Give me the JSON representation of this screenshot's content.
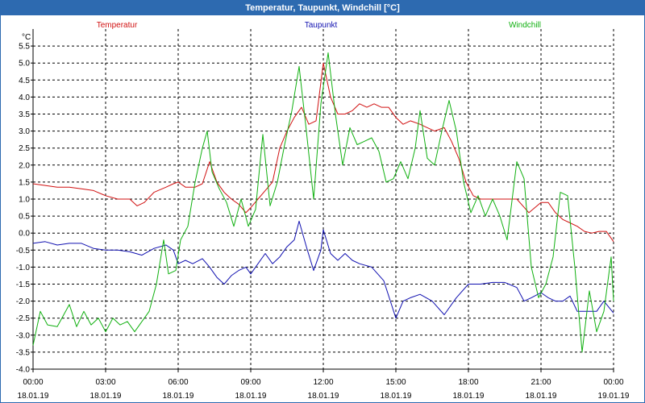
{
  "window": {
    "title": "Temperatur, Taupunkt, Windchill [°C]"
  },
  "chart_data": {
    "type": "line",
    "title": "Temperatur, Taupunkt, Windchill [°C]",
    "ylabel": "°C",
    "xlabel": "",
    "ylim": [
      -4.0,
      6.0
    ],
    "y_ticks": [
      "-4.0",
      "-3.5",
      "-3.0",
      "-2.5",
      "-2.0",
      "-1.5",
      "-1.0",
      "-0.5",
      "0.0",
      "0.5",
      "1.0",
      "1.5",
      "2.0",
      "2.5",
      "3.0",
      "3.5",
      "4.0",
      "4.5",
      "5.0",
      "5.5"
    ],
    "x_range_hours": [
      0,
      24
    ],
    "x_ticks": [
      {
        "time": "00:00",
        "date": "18.01.19"
      },
      {
        "time": "03:00",
        "date": "18.01.19"
      },
      {
        "time": "06:00",
        "date": "18.01.19"
      },
      {
        "time": "09:00",
        "date": "18.01.19"
      },
      {
        "time": "12:00",
        "date": "18.01.19"
      },
      {
        "time": "15:00",
        "date": "18.01.19"
      },
      {
        "time": "18:00",
        "date": "18.01.19"
      },
      {
        "time": "21:00",
        "date": "18.01.19"
      },
      {
        "time": "00:00",
        "date": "19.01.19"
      }
    ],
    "grid": true,
    "legend_placement": "top",
    "series": [
      {
        "name": "Temperatur",
        "color": "#d01010",
        "points": [
          [
            0.0,
            1.45
          ],
          [
            0.5,
            1.4
          ],
          [
            1.0,
            1.35
          ],
          [
            1.5,
            1.35
          ],
          [
            2.0,
            1.3
          ],
          [
            2.5,
            1.25
          ],
          [
            3.0,
            1.1
          ],
          [
            3.5,
            1.0
          ],
          [
            4.0,
            1.0
          ],
          [
            4.3,
            0.8
          ],
          [
            4.6,
            0.9
          ],
          [
            5.0,
            1.2
          ],
          [
            5.5,
            1.35
          ],
          [
            5.8,
            1.45
          ],
          [
            6.0,
            1.5
          ],
          [
            6.3,
            1.35
          ],
          [
            6.7,
            1.35
          ],
          [
            7.0,
            1.45
          ],
          [
            7.3,
            2.1
          ],
          [
            7.6,
            1.5
          ],
          [
            7.9,
            1.2
          ],
          [
            8.2,
            1.0
          ],
          [
            8.5,
            0.85
          ],
          [
            8.8,
            0.6
          ],
          [
            9.0,
            0.75
          ],
          [
            9.3,
            1.0
          ],
          [
            9.6,
            1.25
          ],
          [
            9.9,
            1.5
          ],
          [
            10.2,
            2.5
          ],
          [
            10.5,
            3.0
          ],
          [
            10.8,
            3.4
          ],
          [
            11.1,
            3.7
          ],
          [
            11.4,
            3.2
          ],
          [
            11.7,
            3.3
          ],
          [
            12.0,
            5.0
          ],
          [
            12.3,
            4.0
          ],
          [
            12.6,
            3.5
          ],
          [
            12.9,
            3.5
          ],
          [
            13.2,
            3.6
          ],
          [
            13.5,
            3.8
          ],
          [
            13.8,
            3.7
          ],
          [
            14.1,
            3.8
          ],
          [
            14.4,
            3.7
          ],
          [
            14.7,
            3.7
          ],
          [
            15.0,
            3.4
          ],
          [
            15.3,
            3.2
          ],
          [
            15.6,
            3.3
          ],
          [
            16.0,
            3.2
          ],
          [
            16.3,
            3.1
          ],
          [
            16.6,
            3.0
          ],
          [
            17.0,
            3.1
          ],
          [
            17.3,
            2.7
          ],
          [
            17.6,
            2.2
          ],
          [
            17.9,
            1.5
          ],
          [
            18.2,
            1.1
          ],
          [
            18.5,
            1.0
          ],
          [
            19.0,
            1.0
          ],
          [
            19.5,
            1.0
          ],
          [
            20.0,
            1.0
          ],
          [
            20.5,
            0.6
          ],
          [
            21.0,
            0.9
          ],
          [
            21.3,
            0.9
          ],
          [
            21.6,
            0.6
          ],
          [
            21.9,
            0.4
          ],
          [
            22.2,
            0.3
          ],
          [
            22.5,
            0.2
          ],
          [
            22.8,
            0.05
          ],
          [
            23.1,
            0.0
          ],
          [
            23.4,
            0.05
          ],
          [
            23.7,
            0.05
          ],
          [
            24.0,
            -0.25
          ]
        ]
      },
      {
        "name": "Taupunkt",
        "color": "#1010b0",
        "points": [
          [
            0.0,
            -0.3
          ],
          [
            0.5,
            -0.25
          ],
          [
            1.0,
            -0.35
          ],
          [
            1.5,
            -0.3
          ],
          [
            2.0,
            -0.3
          ],
          [
            2.5,
            -0.45
          ],
          [
            3.0,
            -0.5
          ],
          [
            3.5,
            -0.5
          ],
          [
            4.0,
            -0.55
          ],
          [
            4.5,
            -0.65
          ],
          [
            5.0,
            -0.45
          ],
          [
            5.5,
            -0.35
          ],
          [
            5.8,
            -0.5
          ],
          [
            6.0,
            -0.9
          ],
          [
            6.3,
            -0.8
          ],
          [
            6.6,
            -0.9
          ],
          [
            7.0,
            -0.75
          ],
          [
            7.3,
            -1.0
          ],
          [
            7.6,
            -1.3
          ],
          [
            7.9,
            -1.5
          ],
          [
            8.2,
            -1.25
          ],
          [
            8.5,
            -1.1
          ],
          [
            8.8,
            -1.0
          ],
          [
            9.0,
            -1.2
          ],
          [
            9.3,
            -0.9
          ],
          [
            9.6,
            -0.6
          ],
          [
            9.9,
            -0.9
          ],
          [
            10.2,
            -0.7
          ],
          [
            10.5,
            -0.4
          ],
          [
            10.8,
            -0.2
          ],
          [
            11.0,
            0.35
          ],
          [
            11.3,
            -0.4
          ],
          [
            11.6,
            -1.1
          ],
          [
            11.9,
            -0.5
          ],
          [
            12.0,
            0.1
          ],
          [
            12.3,
            -0.6
          ],
          [
            12.6,
            -0.8
          ],
          [
            12.9,
            -0.6
          ],
          [
            13.2,
            -0.8
          ],
          [
            13.5,
            -0.9
          ],
          [
            14.0,
            -1.0
          ],
          [
            14.5,
            -1.4
          ],
          [
            15.0,
            -2.5
          ],
          [
            15.3,
            -2.0
          ],
          [
            15.6,
            -1.9
          ],
          [
            16.0,
            -1.8
          ],
          [
            16.5,
            -2.0
          ],
          [
            17.0,
            -2.4
          ],
          [
            17.5,
            -1.9
          ],
          [
            18.0,
            -1.5
          ],
          [
            18.5,
            -1.5
          ],
          [
            19.0,
            -1.45
          ],
          [
            19.5,
            -1.45
          ],
          [
            20.0,
            -1.6
          ],
          [
            20.3,
            -2.0
          ],
          [
            20.6,
            -1.9
          ],
          [
            21.0,
            -1.75
          ],
          [
            21.3,
            -1.9
          ],
          [
            21.6,
            -2.0
          ],
          [
            21.9,
            -2.0
          ],
          [
            22.2,
            -1.85
          ],
          [
            22.5,
            -2.3
          ],
          [
            23.0,
            -2.3
          ],
          [
            23.3,
            -2.3
          ],
          [
            23.6,
            -2.0
          ],
          [
            24.0,
            -2.35
          ]
        ]
      },
      {
        "name": "Windchill",
        "color": "#10b010",
        "points": [
          [
            0.0,
            -3.3
          ],
          [
            0.3,
            -2.3
          ],
          [
            0.6,
            -2.7
          ],
          [
            1.0,
            -2.75
          ],
          [
            1.5,
            -2.1
          ],
          [
            1.8,
            -2.75
          ],
          [
            2.1,
            -2.3
          ],
          [
            2.4,
            -2.7
          ],
          [
            2.7,
            -2.5
          ],
          [
            3.0,
            -2.9
          ],
          [
            3.3,
            -2.5
          ],
          [
            3.6,
            -2.7
          ],
          [
            3.9,
            -2.6
          ],
          [
            4.2,
            -2.9
          ],
          [
            4.5,
            -2.6
          ],
          [
            4.8,
            -2.3
          ],
          [
            5.1,
            -1.5
          ],
          [
            5.4,
            -0.2
          ],
          [
            5.6,
            -1.2
          ],
          [
            5.9,
            -1.1
          ],
          [
            6.1,
            -0.2
          ],
          [
            6.4,
            0.2
          ],
          [
            6.7,
            1.5
          ],
          [
            7.0,
            2.5
          ],
          [
            7.2,
            3.0
          ],
          [
            7.4,
            1.8
          ],
          [
            7.7,
            1.3
          ],
          [
            8.0,
            0.9
          ],
          [
            8.3,
            0.2
          ],
          [
            8.6,
            1.0
          ],
          [
            8.9,
            0.2
          ],
          [
            9.2,
            0.7
          ],
          [
            9.5,
            2.9
          ],
          [
            9.8,
            0.8
          ],
          [
            10.1,
            1.5
          ],
          [
            10.4,
            2.6
          ],
          [
            10.7,
            3.6
          ],
          [
            11.0,
            4.9
          ],
          [
            11.3,
            3.0
          ],
          [
            11.6,
            1.0
          ],
          [
            11.9,
            3.8
          ],
          [
            12.2,
            5.3
          ],
          [
            12.5,
            3.5
          ],
          [
            12.8,
            2.0
          ],
          [
            13.1,
            3.1
          ],
          [
            13.4,
            2.6
          ],
          [
            13.7,
            2.7
          ],
          [
            14.0,
            2.8
          ],
          [
            14.3,
            2.4
          ],
          [
            14.6,
            1.5
          ],
          [
            14.9,
            1.6
          ],
          [
            15.2,
            2.1
          ],
          [
            15.5,
            1.6
          ],
          [
            15.8,
            2.5
          ],
          [
            16.0,
            3.6
          ],
          [
            16.3,
            2.2
          ],
          [
            16.6,
            2.0
          ],
          [
            16.9,
            3.0
          ],
          [
            17.2,
            3.9
          ],
          [
            17.5,
            3.0
          ],
          [
            17.8,
            1.5
          ],
          [
            18.1,
            0.6
          ],
          [
            18.4,
            1.1
          ],
          [
            18.7,
            0.5
          ],
          [
            19.0,
            1.0
          ],
          [
            19.3,
            0.5
          ],
          [
            19.6,
            -0.2
          ],
          [
            20.0,
            2.1
          ],
          [
            20.3,
            1.6
          ],
          [
            20.6,
            -1.0
          ],
          [
            20.9,
            -1.9
          ],
          [
            21.2,
            -1.5
          ],
          [
            21.5,
            -0.7
          ],
          [
            21.8,
            1.2
          ],
          [
            22.1,
            1.1
          ],
          [
            22.4,
            -1.0
          ],
          [
            22.7,
            -3.5
          ],
          [
            23.0,
            -1.7
          ],
          [
            23.3,
            -2.9
          ],
          [
            23.6,
            -2.3
          ],
          [
            23.9,
            -0.7
          ],
          [
            24.0,
            -2.0
          ]
        ]
      }
    ]
  }
}
